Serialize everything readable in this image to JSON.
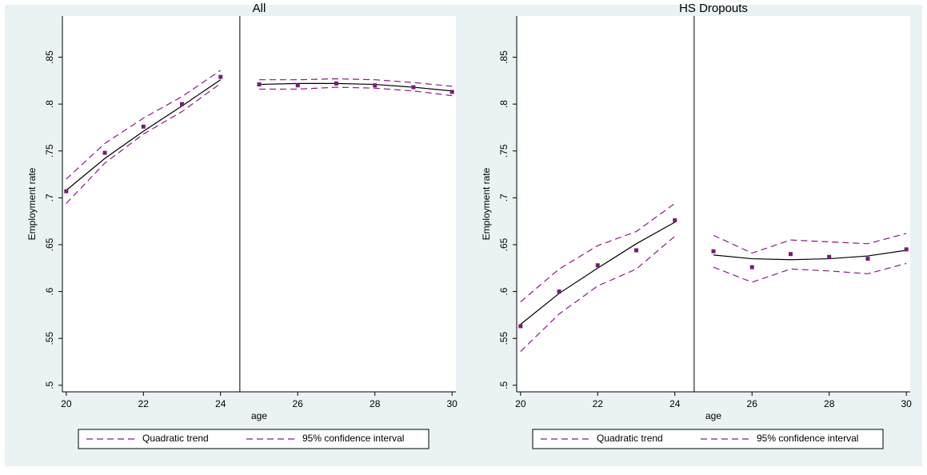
{
  "chart_data": [
    {
      "type": "line",
      "title": "All",
      "xlabel": "age",
      "ylabel": "Employment rate",
      "x": [
        20,
        21,
        22,
        23,
        24,
        25,
        26,
        27,
        28,
        29,
        30
      ],
      "values": [
        0.707,
        0.748,
        0.776,
        0.8,
        0.829,
        0.821,
        0.82,
        0.822,
        0.82,
        0.818,
        0.813
      ],
      "marker_color": "#7b1a79",
      "trend": [
        {
          "x": [
            20,
            21,
            22,
            23,
            24
          ],
          "fit": [
            0.708,
            0.742,
            0.771,
            0.798,
            0.826
          ],
          "upper": [
            0.72,
            0.758,
            0.785,
            0.808,
            0.836
          ],
          "lower": [
            0.694,
            0.737,
            0.768,
            0.792,
            0.822
          ]
        },
        {
          "x": [
            25,
            26,
            27,
            28,
            29,
            30
          ],
          "fit": [
            0.821,
            0.822,
            0.822,
            0.821,
            0.818,
            0.814
          ],
          "upper": [
            0.826,
            0.826,
            0.827,
            0.826,
            0.823,
            0.819
          ],
          "lower": [
            0.816,
            0.816,
            0.818,
            0.817,
            0.814,
            0.809
          ]
        }
      ],
      "fit_color": "#000000",
      "ci_color": "#8b1a89",
      "cutoff": 24.5,
      "legend": [
        "Quadratic trend",
        "95% confidence interval"
      ],
      "xlim": [
        19.9,
        30.1
      ],
      "ylim": [
        0.493,
        0.894
      ],
      "xticks": [
        20,
        22,
        24,
        26,
        28,
        30
      ],
      "yticks": [
        {
          "value": 0.5,
          "label": ".5"
        },
        {
          "value": 0.55,
          "label": ".55"
        },
        {
          "value": 0.6,
          "label": ".6"
        },
        {
          "value": 0.65,
          "label": ".65"
        },
        {
          "value": 0.7,
          "label": ".7"
        },
        {
          "value": 0.75,
          "label": ".75"
        },
        {
          "value": 0.8,
          "label": ".8"
        },
        {
          "value": 0.85,
          "label": ".85"
        }
      ]
    },
    {
      "type": "line",
      "title": "HS Dropouts",
      "xlabel": "age",
      "ylabel": "Employment rate",
      "x": [
        20,
        21,
        22,
        23,
        24,
        25,
        26,
        27,
        28,
        29,
        30
      ],
      "values": [
        0.563,
        0.6,
        0.628,
        0.644,
        0.676,
        0.643,
        0.626,
        0.64,
        0.637,
        0.635,
        0.645
      ],
      "marker_color": "#7b1a79",
      "trend": [
        {
          "x": [
            20,
            21,
            22,
            23,
            24
          ],
          "fit": [
            0.565,
            0.598,
            0.625,
            0.651,
            0.674
          ],
          "upper": [
            0.589,
            0.624,
            0.649,
            0.664,
            0.694
          ],
          "lower": [
            0.536,
            0.576,
            0.606,
            0.624,
            0.659
          ]
        },
        {
          "x": [
            25,
            26,
            27,
            28,
            29,
            30
          ],
          "fit": [
            0.639,
            0.635,
            0.634,
            0.635,
            0.638,
            0.644
          ],
          "upper": [
            0.66,
            0.641,
            0.655,
            0.653,
            0.651,
            0.662
          ],
          "lower": [
            0.626,
            0.61,
            0.624,
            0.622,
            0.619,
            0.63
          ]
        }
      ],
      "fit_color": "#000000",
      "ci_color": "#8b1a89",
      "cutoff": 24.5,
      "legend": [
        "Quadratic trend",
        "95% confidence interval"
      ],
      "xlim": [
        19.9,
        30.1
      ],
      "ylim": [
        0.493,
        0.894
      ],
      "xticks": [
        20,
        22,
        24,
        26,
        28,
        30
      ],
      "yticks": [
        {
          "value": 0.5,
          "label": ".5"
        },
        {
          "value": 0.55,
          "label": ".55"
        },
        {
          "value": 0.6,
          "label": ".6"
        },
        {
          "value": 0.65,
          "label": ".65"
        },
        {
          "value": 0.7,
          "label": ".7"
        },
        {
          "value": 0.75,
          "label": ".75"
        },
        {
          "value": 0.8,
          "label": ".8"
        },
        {
          "value": 0.85,
          "label": ".85"
        }
      ]
    }
  ]
}
